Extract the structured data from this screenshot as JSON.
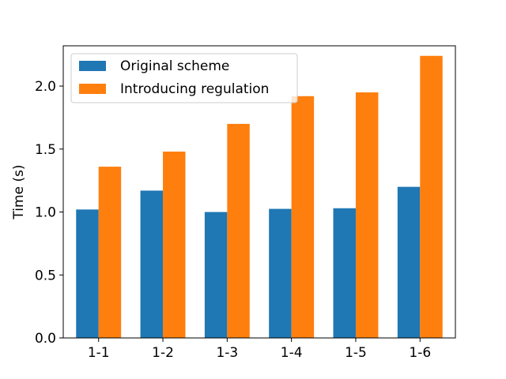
{
  "chart_data": {
    "type": "bar",
    "title": "",
    "xlabel": "",
    "ylabel": "Time (s)",
    "categories": [
      "1-1",
      "1-2",
      "1-3",
      "1-4",
      "1-5",
      "1-6"
    ],
    "series": [
      {
        "name": "Original scheme",
        "color": "#1f77b4",
        "values": [
          1.02,
          1.17,
          1.0,
          1.025,
          1.03,
          1.2
        ]
      },
      {
        "name": "Introducing regulation",
        "color": "#ff7f0e",
        "values": [
          1.36,
          1.48,
          1.7,
          1.92,
          1.95,
          2.24
        ]
      }
    ],
    "ylim": [
      0,
      2.32
    ],
    "yticks": [
      "0.0",
      "0.5",
      "1.0",
      "1.5",
      "2.0"
    ],
    "grid": false,
    "legend": "top-left"
  }
}
